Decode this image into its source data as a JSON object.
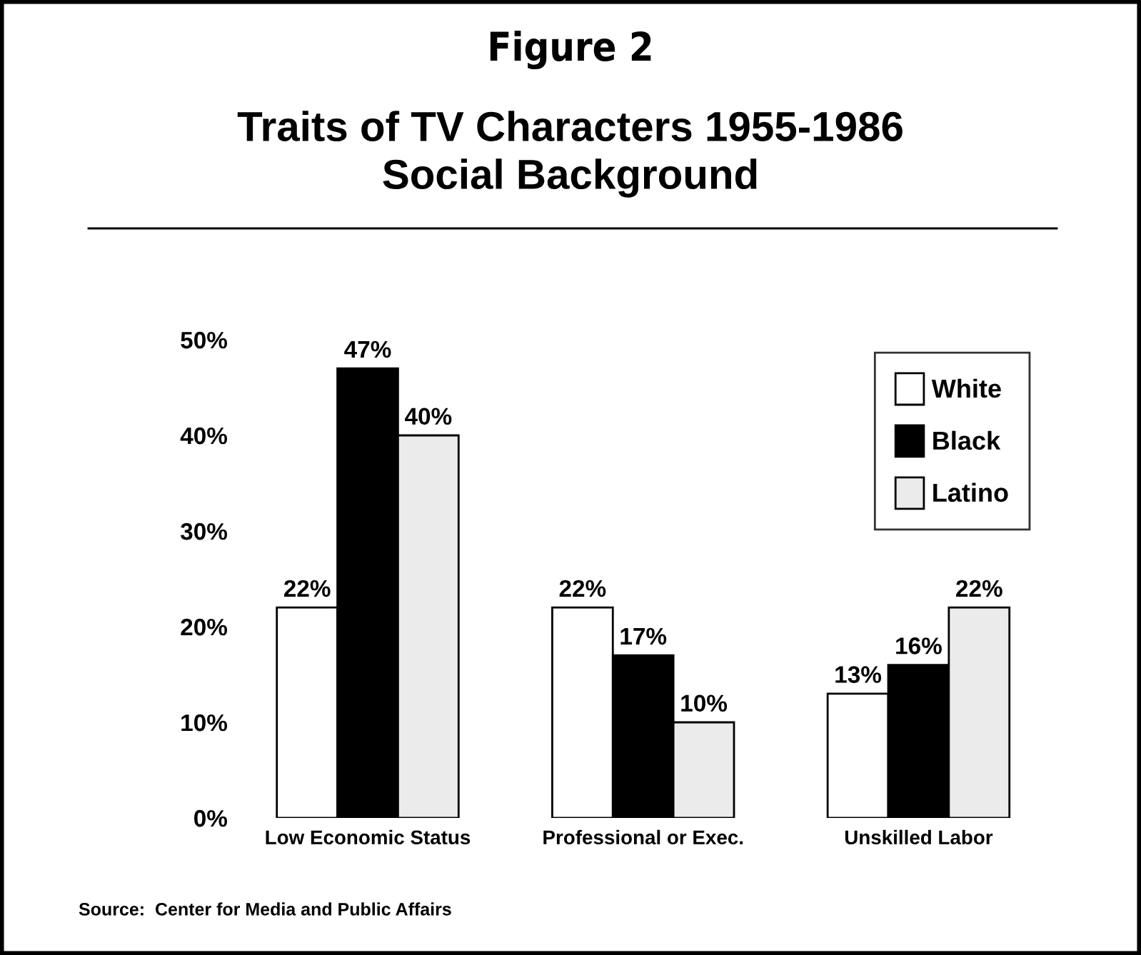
{
  "chart_data": {
    "type": "bar",
    "title": "Figure 2",
    "subtitle": "Traits of TV Characters 1955-1986\nSocial Background",
    "categories": [
      "Low Economic Status",
      "Professional or Exec.",
      "Unskilled Labor"
    ],
    "series": [
      {
        "name": "White",
        "color": "#ffffff",
        "values": [
          22,
          22,
          13
        ],
        "value_labels": [
          "22%",
          "22%",
          "13%"
        ]
      },
      {
        "name": "Black",
        "color": "#000000",
        "values": [
          47,
          17,
          16
        ],
        "value_labels": [
          "47%",
          "17%",
          "16%"
        ]
      },
      {
        "name": "Latino",
        "color": "#ebebeb",
        "values": [
          40,
          10,
          22
        ],
        "value_labels": [
          "40%",
          "10%",
          "22%"
        ]
      }
    ],
    "ylim": [
      0,
      50
    ],
    "yticks": [
      {
        "value": 0,
        "label": "0%"
      },
      {
        "value": 10,
        "label": "10%"
      },
      {
        "value": 20,
        "label": "20%"
      },
      {
        "value": 30,
        "label": "30%"
      },
      {
        "value": 40,
        "label": "40%"
      },
      {
        "value": 50,
        "label": "50%"
      }
    ],
    "grid": false,
    "legend": "top right",
    "annotations": [
      "Source:  Center for Media and Public Affairs"
    ]
  }
}
